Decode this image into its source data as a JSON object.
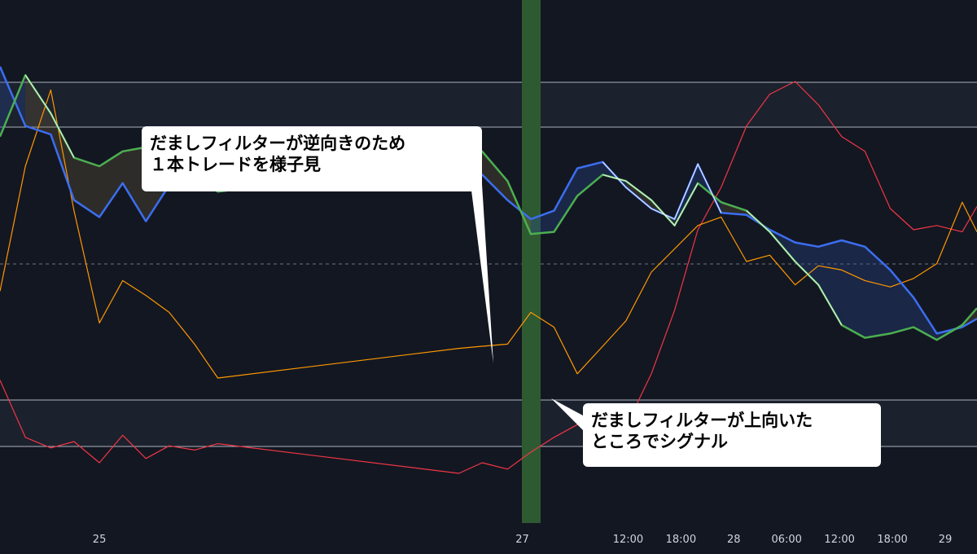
{
  "chart_data": {
    "type": "line",
    "grid": false,
    "x_ticks": [
      {
        "label": "25",
        "x": 25
      },
      {
        "label": "27",
        "x": 27
      },
      {
        "label": "12:00",
        "x": 27.5
      },
      {
        "label": "18:00",
        "x": 27.75
      },
      {
        "label": "28",
        "x": 28
      },
      {
        "label": "06:00",
        "x": 28.25
      },
      {
        "label": "12:00",
        "x": 28.5
      },
      {
        "label": "18:00",
        "x": 28.75
      },
      {
        "label": "29",
        "x": 29
      }
    ],
    "x": [
      24.53,
      24.65,
      24.77,
      24.88,
      25.0,
      25.11,
      25.22,
      25.33,
      25.45,
      25.56,
      26.7,
      26.81,
      26.93,
      27.04,
      27.15,
      27.26,
      27.38,
      27.49,
      27.61,
      27.72,
      27.83,
      27.94,
      28.06,
      28.17,
      28.29,
      28.4,
      28.51,
      28.62,
      28.74,
      28.85,
      28.96,
      29.08,
      29.15
    ],
    "series": [
      {
        "values": [
          92,
          64,
          60,
          29,
          21,
          37,
          19,
          36,
          46,
          44,
          37,
          41,
          29,
          20,
          24,
          44,
          47,
          35,
          25,
          20,
          46,
          23,
          22,
          15,
          9,
          7,
          10,
          7,
          -4,
          -17,
          -34,
          -31,
          -27
        ]
      },
      {
        "values": [
          59,
          88,
          70,
          49,
          45,
          52,
          54,
          50,
          39,
          33,
          47,
          52,
          38,
          13,
          14,
          31,
          41,
          38,
          29,
          17,
          37,
          28,
          24,
          14,
          0,
          -11,
          -30,
          -36,
          -34,
          -31,
          -37,
          -30,
          -22
        ]
      },
      {
        "values": [
          -14,
          45,
          81,
          24,
          -29,
          -9,
          -16,
          -24,
          -39,
          -55,
          -41,
          -40,
          -39,
          -24,
          -31,
          -53,
          -40,
          -28,
          -5,
          6,
          17,
          21,
          0,
          3,
          -11,
          -2,
          -4,
          -9,
          -12,
          -8,
          -1,
          28,
          14
        ]
      },
      {
        "values": [
          -56,
          -83,
          -88,
          -85,
          -95,
          -82,
          -93,
          -87,
          -89,
          -86,
          -100,
          -95,
          -98,
          -90,
          -83,
          -77,
          -77,
          -78,
          -53,
          -23,
          15,
          35,
          64,
          79,
          85,
          74,
          59,
          52,
          25,
          15,
          17,
          14,
          26
        ]
      }
    ]
  },
  "annotations": {
    "top_line1": "だましフィルターが逆向きのため",
    "top_line2": "１本トレードを様子見",
    "bottom_line1": "だましフィルターが上向いた",
    "bottom_line2": "ところでシグナル"
  }
}
